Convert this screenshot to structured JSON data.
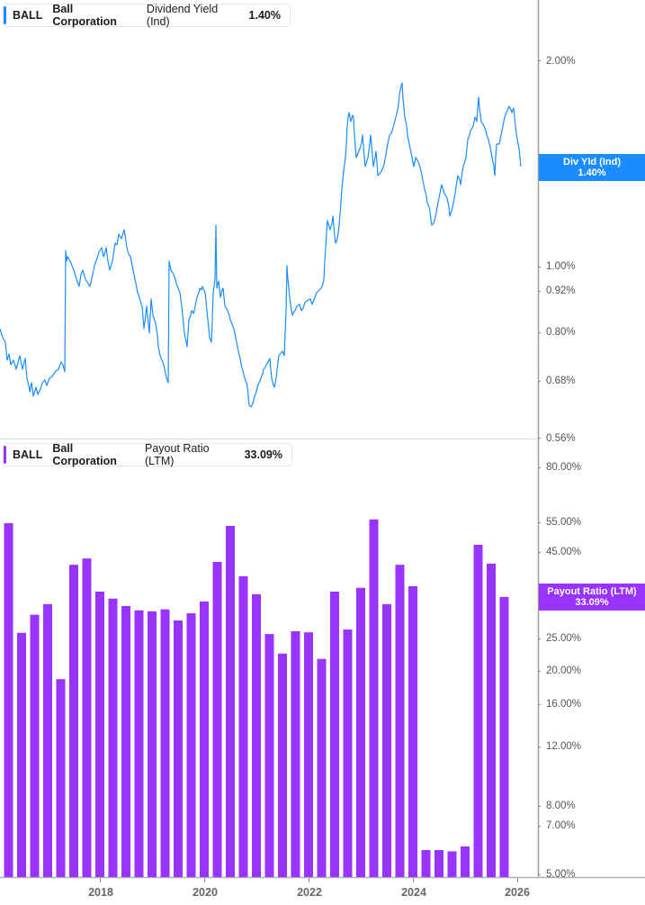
{
  "panels": {
    "top": {
      "ticker": "BALL",
      "company": "Ball Corporation",
      "metric": "Dividend Yield (Ind)",
      "value": "1.40%",
      "color": "#1a8cff",
      "tag_title": "Div Yld (Ind)",
      "tag_value": "1.40%",
      "axis_labels": [
        "2.00%",
        "1.00%",
        "0.92%",
        "0.80%",
        "0.68%",
        "0.56%"
      ]
    },
    "bottom": {
      "ticker": "BALL",
      "company": "Ball Corporation",
      "metric": "Payout Ratio (LTM)",
      "value": "33.09%",
      "color": "#9933ff",
      "tag_title": "Payout Ratio (LTM)",
      "tag_value": "33.09%",
      "axis_labels": [
        "80.00%",
        "55.00%",
        "45.00%",
        "25.00%",
        "20.00%",
        "16.00%",
        "12.00%",
        "8.00%",
        "7.00%",
        "5.00%"
      ]
    }
  },
  "x_axis": {
    "years": [
      "2018",
      "2020",
      "2022",
      "2024",
      "2026"
    ]
  },
  "chart_data": [
    {
      "type": "line",
      "title": "BALL Ball Corporation Dividend Yield (Ind) 1.40%",
      "xlabel": "",
      "ylabel": "Dividend Yield (Ind)",
      "scale": "log",
      "ylim": [
        0.56,
        2.3
      ],
      "y_ticks": [
        2.0,
        1.0,
        0.92,
        0.8,
        0.68,
        0.56
      ],
      "x_range": [
        "2016-04",
        "2026-01"
      ],
      "series": [
        {
          "name": "Div Yld (Ind)",
          "color": "#1a8cff",
          "approx_points": [
            {
              "x": "2016-04",
              "y": 0.79
            },
            {
              "x": "2016-07",
              "y": 0.72
            },
            {
              "x": "2016-10",
              "y": 0.66
            },
            {
              "x": "2017-01",
              "y": 0.7
            },
            {
              "x": "2017-02",
              "y": 1.12
            },
            {
              "x": "2017-07",
              "y": 1.01
            },
            {
              "x": "2017-12",
              "y": 1.17
            },
            {
              "x": "2018-06",
              "y": 0.82
            },
            {
              "x": "2018-10",
              "y": 0.68
            },
            {
              "x": "2018-11",
              "y": 0.98
            },
            {
              "x": "2019-03",
              "y": 0.79
            },
            {
              "x": "2019-07",
              "y": 0.95
            },
            {
              "x": "2019-12",
              "y": 0.8
            },
            {
              "x": "2020-01",
              "y": 1.2
            },
            {
              "x": "2020-06",
              "y": 0.8
            },
            {
              "x": "2020-11",
              "y": 0.62
            },
            {
              "x": "2021-04",
              "y": 0.72
            },
            {
              "x": "2021-06",
              "y": 0.99
            },
            {
              "x": "2021-12",
              "y": 0.89
            },
            {
              "x": "2022-03",
              "y": 1.2
            },
            {
              "x": "2022-07",
              "y": 1.6
            },
            {
              "x": "2023-01",
              "y": 1.52
            },
            {
              "x": "2023-09",
              "y": 1.86
            },
            {
              "x": "2024-01",
              "y": 1.42
            },
            {
              "x": "2024-04",
              "y": 1.22
            },
            {
              "x": "2024-08",
              "y": 1.28
            },
            {
              "x": "2025-01",
              "y": 1.58
            },
            {
              "x": "2025-03",
              "y": 1.72
            },
            {
              "x": "2025-07",
              "y": 1.43
            },
            {
              "x": "2025-10",
              "y": 1.68
            },
            {
              "x": "2026-01",
              "y": 1.4
            }
          ]
        }
      ]
    },
    {
      "type": "bar",
      "title": "BALL Ball Corporation Payout Ratio (LTM) 33.09%",
      "xlabel": "",
      "ylabel": "Payout Ratio (LTM)",
      "scale": "log",
      "ylim": [
        5,
        80
      ],
      "y_ticks": [
        80,
        55,
        45,
        25,
        20,
        16,
        12,
        8,
        7,
        5
      ],
      "x_ticks": [
        "2018",
        "2020",
        "2022",
        "2024",
        "2026"
      ],
      "categories": [
        "Q2 2016",
        "Q3 2016",
        "Q4 2016",
        "Q1 2017",
        "Q2 2017",
        "Q3 2017",
        "Q4 2017",
        "Q1 2018",
        "Q2 2018",
        "Q3 2018",
        "Q4 2018",
        "Q1 2019",
        "Q2 2019",
        "Q3 2019",
        "Q4 2019",
        "Q1 2020",
        "Q2 2020",
        "Q3 2020",
        "Q4 2020",
        "Q1 2021",
        "Q2 2021",
        "Q3 2021",
        "Q4 2021",
        "Q1 2022",
        "Q2 2022",
        "Q3 2022",
        "Q4 2022",
        "Q1 2023",
        "Q2 2023",
        "Q3 2023",
        "Q4 2023",
        "Q1 2024",
        "Q2 2024",
        "Q3 2024",
        "Q4 2024",
        "Q1 2025",
        "Q2 2025",
        "Q3 2025",
        "Q4 2025"
      ],
      "series": [
        {
          "name": "Payout Ratio (LTM)",
          "color": "#9933ff",
          "values": [
            54.7,
            25.9,
            29.3,
            31.5,
            18.9,
            41.2,
            43.0,
            34.3,
            32.7,
            31.1,
            30.2,
            30.0,
            30.4,
            28.2,
            29.6,
            32.1,
            42.0,
            53.7,
            38.1,
            33.7,
            25.7,
            22.5,
            26.2,
            26.0,
            21.7,
            34.3,
            26.5,
            35.2,
            56.1,
            31.5,
            41.2,
            35.6,
            5.9,
            5.9,
            5.85,
            6.05,
            47.2,
            41.5,
            33.09
          ]
        }
      ]
    }
  ]
}
